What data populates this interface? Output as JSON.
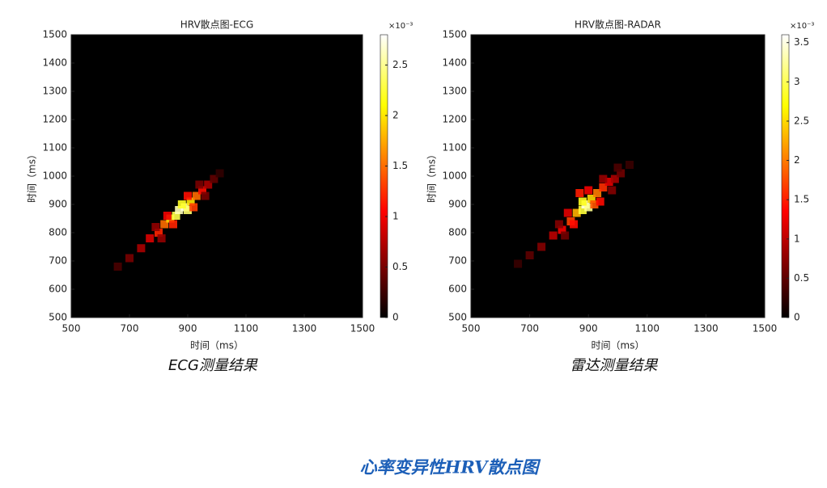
{
  "figure_title": "心率变异性HRV散点图",
  "chart_data": [
    {
      "type": "heatmap",
      "title": "HRV散点图-ECG",
      "xlabel": "时间（ms）",
      "ylabel": "时间（ms）",
      "caption": "ECG测量结果",
      "colormap": "hot",
      "colorbar_multiplier": "×10⁻³",
      "xlim": [
        500,
        1500
      ],
      "xticks": [
        500,
        700,
        900,
        1100,
        1300,
        1500
      ],
      "ylim": [
        500,
        1500
      ],
      "yticks": [
        500,
        600,
        700,
        800,
        900,
        1000,
        1100,
        1200,
        1300,
        1400,
        1500
      ],
      "clim": [
        0,
        2.8
      ],
      "cticks": [
        0,
        0.5,
        1,
        1.5,
        2,
        2.5
      ],
      "cells": {
        "x": [
          660,
          700,
          740,
          770,
          800,
          820,
          840,
          860,
          870,
          890,
          900,
          880,
          910,
          930,
          950,
          970,
          990,
          1010,
          850,
          830,
          920,
          900,
          790,
          810,
          940,
          960
        ],
        "y": [
          680,
          710,
          745,
          780,
          800,
          830,
          850,
          860,
          880,
          890,
          880,
          900,
          910,
          930,
          950,
          970,
          990,
          1010,
          830,
          860,
          890,
          930,
          820,
          780,
          970,
          930
        ],
        "values": [
          0.3,
          0.5,
          0.7,
          0.9,
          1.2,
          1.5,
          1.9,
          2.3,
          2.6,
          2.7,
          2.4,
          2.2,
          2.0,
          1.5,
          1.1,
          0.7,
          0.4,
          0.2,
          1.2,
          1.0,
          1.3,
          1.1,
          0.6,
          0.6,
          0.5,
          0.5
        ]
      }
    },
    {
      "type": "heatmap",
      "title": "HRV散点图-RADAR",
      "xlabel": "时间（ms）",
      "ylabel": "时间（ms）",
      "caption": "雷达测量结果",
      "colormap": "hot",
      "colorbar_multiplier": "×10⁻³",
      "xlim": [
        500,
        1500
      ],
      "xticks": [
        500,
        700,
        900,
        1100,
        1300,
        1500
      ],
      "ylim": [
        500,
        1500
      ],
      "yticks": [
        500,
        600,
        700,
        800,
        900,
        1000,
        1100,
        1200,
        1300,
        1400,
        1500
      ],
      "clim": [
        0,
        3.6
      ],
      "cticks": [
        0,
        0.5,
        1,
        1.5,
        2,
        2.5,
        3,
        3.5
      ],
      "cells": {
        "x": [
          660,
          700,
          740,
          780,
          810,
          840,
          860,
          880,
          890,
          900,
          880,
          910,
          930,
          950,
          970,
          990,
          1010,
          1040,
          850,
          830,
          920,
          900,
          800,
          820,
          950,
          980,
          1000,
          870,
          940
        ],
        "y": [
          690,
          720,
          750,
          790,
          810,
          840,
          870,
          880,
          900,
          890,
          910,
          920,
          940,
          960,
          980,
          990,
          1010,
          1040,
          830,
          870,
          900,
          950,
          830,
          790,
          990,
          950,
          1030,
          940,
          910
        ],
        "values": [
          0.3,
          0.5,
          0.7,
          1.0,
          1.3,
          1.7,
          2.3,
          2.9,
          3.5,
          3.2,
          2.8,
          2.5,
          2.0,
          1.6,
          1.2,
          0.9,
          0.6,
          0.3,
          1.4,
          1.2,
          1.8,
          1.3,
          0.7,
          0.6,
          0.8,
          0.7,
          0.4,
          1.5,
          1.4
        ]
      }
    }
  ]
}
